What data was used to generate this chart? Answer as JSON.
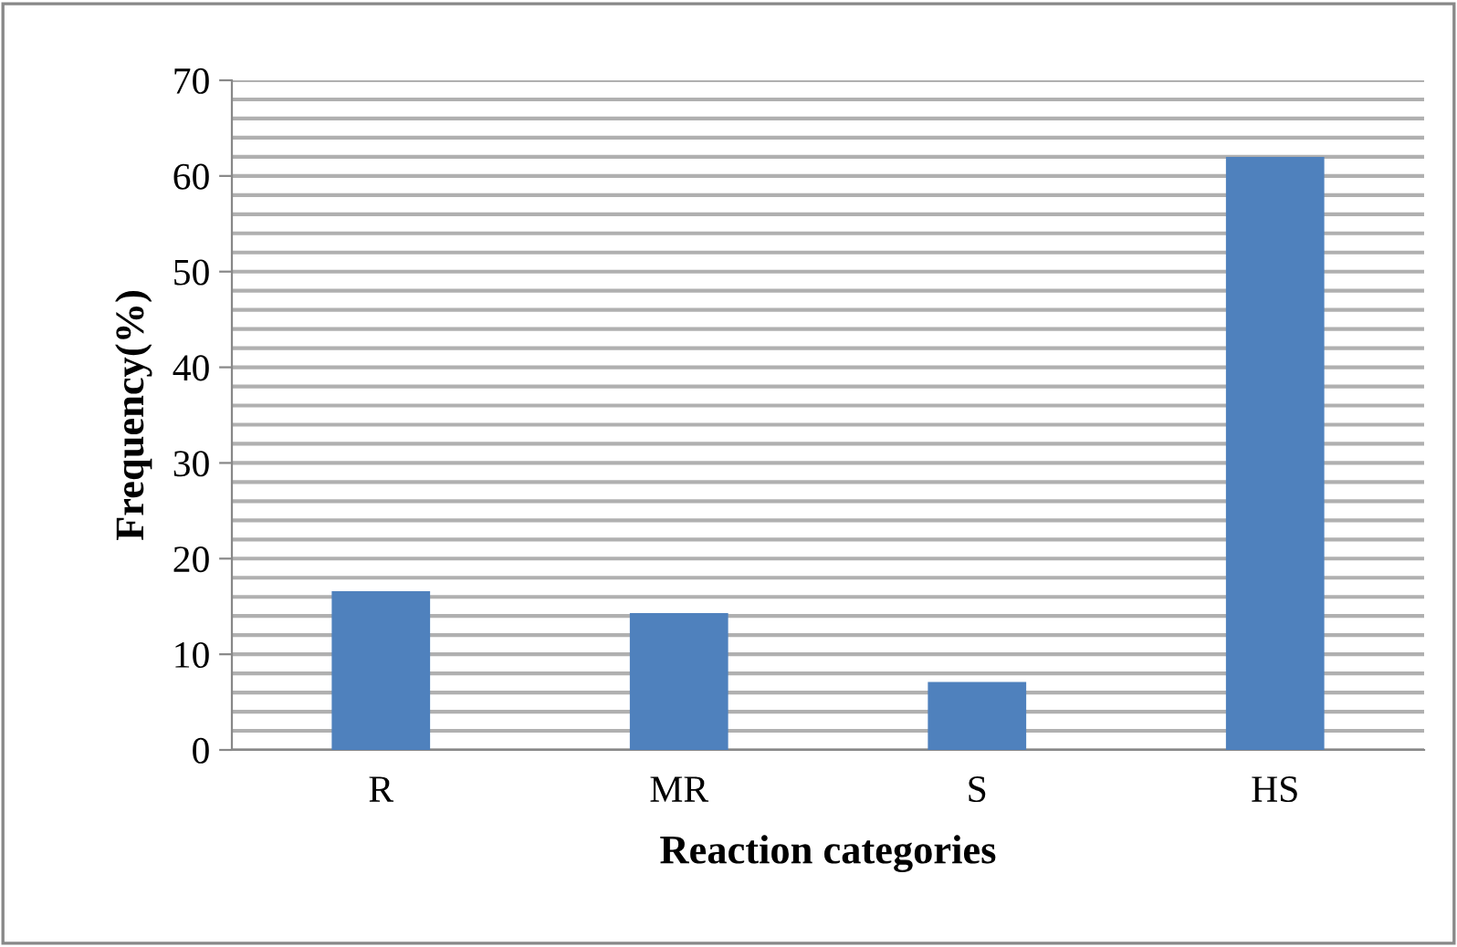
{
  "chart_data": {
    "type": "bar",
    "xlabel": "Reaction categories",
    "ylabel": "Frequency(%)",
    "categories": [
      "R",
      "MR",
      "S",
      "HS"
    ],
    "values": [
      16.6,
      14.3,
      7.1,
      62.0
    ],
    "color": "#4f81bd",
    "ylim": [
      0,
      70
    ],
    "yticks": [
      0,
      {
        "value": 2,
        "label": null
      },
      {
        "value": 4,
        "label": null
      },
      {
        "value": 6,
        "label": null
      },
      {
        "value": 8,
        "label": null
      },
      10,
      {
        "value": 12,
        "label": null
      },
      {
        "value": 14,
        "label": null
      },
      {
        "value": 16,
        "label": null
      },
      {
        "value": 18,
        "label": null
      },
      20,
      {
        "value": 22,
        "label": null
      },
      {
        "value": 24,
        "label": null
      },
      {
        "value": 26,
        "label": null
      },
      {
        "value": 28,
        "label": null
      },
      30,
      {
        "value": 32,
        "label": null
      },
      {
        "value": 34,
        "label": null
      },
      {
        "value": 36,
        "label": null
      },
      {
        "value": 38,
        "label": null
      },
      40,
      {
        "value": 42,
        "label": null
      },
      {
        "value": 44,
        "label": null
      },
      {
        "value": 46,
        "label": null
      },
      {
        "value": 48,
        "label": null
      },
      50,
      {
        "value": 52,
        "label": null
      },
      {
        "value": 54,
        "label": null
      },
      {
        "value": 56,
        "label": null
      },
      {
        "value": 58,
        "label": null
      },
      60,
      {
        "value": 62,
        "label": null
      },
      {
        "value": 64,
        "label": null
      },
      {
        "value": 66,
        "label": null
      },
      {
        "value": 68,
        "label": null
      },
      70
    ],
    "grid": "y"
  }
}
